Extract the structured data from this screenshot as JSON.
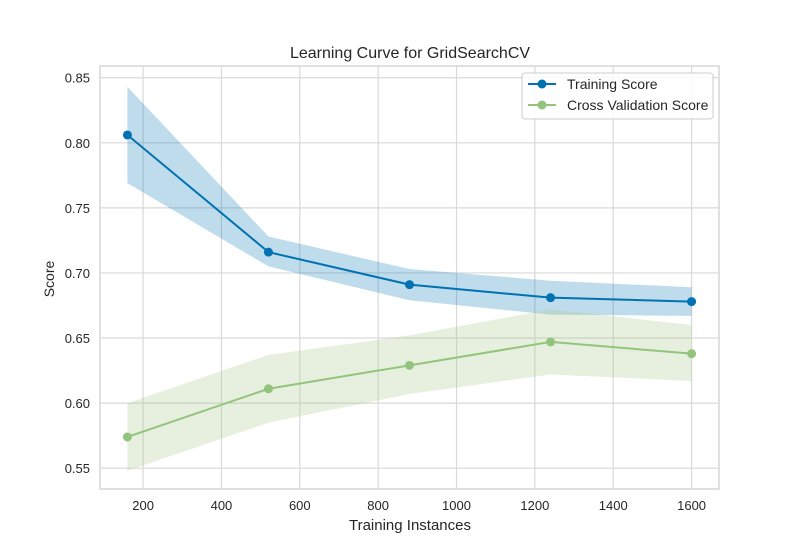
{
  "chart_data": {
    "type": "line",
    "title": "Learning Curve for GridSearchCV",
    "xlabel": "Training Instances",
    "ylabel": "Score",
    "xlim": [
      90,
      1670
    ],
    "ylim": [
      0.534,
      0.859
    ],
    "xticks": [
      200,
      400,
      600,
      800,
      1000,
      1200,
      1400,
      1600
    ],
    "xtick_labels": [
      "200",
      "400",
      "600",
      "800",
      "1000",
      "1200",
      "1400",
      "1600"
    ],
    "yticks": [
      0.55,
      0.6,
      0.65,
      0.7,
      0.75,
      0.8,
      0.85
    ],
    "ytick_labels": [
      "0.55",
      "0.60",
      "0.65",
      "0.70",
      "0.75",
      "0.80",
      "0.85"
    ],
    "grid": true,
    "legend_position": "top-right",
    "x": [
      160,
      520,
      880,
      1240,
      1600
    ],
    "series": [
      {
        "name": "Training Score",
        "color": "#0072b2",
        "band_color": "#0072b2",
        "values": [
          0.806,
          0.716,
          0.691,
          0.681,
          0.678
        ],
        "upper": [
          0.843,
          0.728,
          0.703,
          0.694,
          0.689
        ],
        "lower": [
          0.769,
          0.705,
          0.679,
          0.668,
          0.667
        ]
      },
      {
        "name": "Cross Validation Score",
        "color": "#93c47d",
        "band_color": "#a8c98a",
        "values": [
          0.574,
          0.611,
          0.629,
          0.647,
          0.638
        ],
        "upper": [
          0.6,
          0.637,
          0.652,
          0.672,
          0.66
        ],
        "lower": [
          0.548,
          0.585,
          0.607,
          0.622,
          0.617
        ]
      }
    ]
  }
}
